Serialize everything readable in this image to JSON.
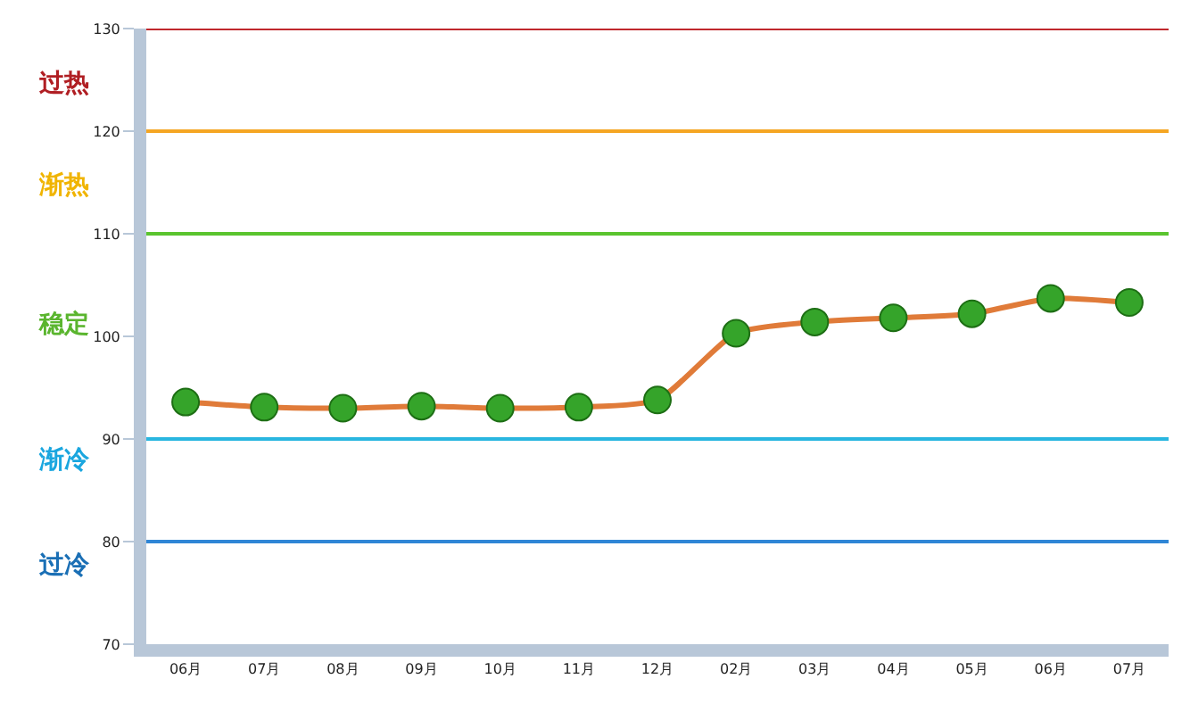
{
  "chart_data": {
    "type": "line",
    "categories": [
      "06月",
      "07月",
      "08月",
      "09月",
      "10月",
      "11月",
      "12月",
      "02月",
      "03月",
      "04月",
      "05月",
      "06月",
      "07月"
    ],
    "series": [
      {
        "color": "#e07b39",
        "values": [
          93.6,
          93.1,
          93.0,
          93.2,
          93.0,
          93.1,
          93.8,
          100.3,
          101.4,
          101.8,
          102.2,
          103.7,
          103.3
        ]
      }
    ],
    "ylim": [
      70,
      130
    ],
    "yticks": [
      70,
      80,
      90,
      100,
      110,
      120,
      130
    ],
    "marker": "circle",
    "line_style": "solid",
    "grid": false,
    "ref_lines": [
      {
        "axis": "y",
        "value": 130,
        "color": "#c0282d"
      },
      {
        "axis": "y",
        "value": 120,
        "color": "#f5a623"
      },
      {
        "axis": "y",
        "value": 110,
        "color": "#5ac42e"
      },
      {
        "axis": "y",
        "value": 90,
        "color": "#29b6e0"
      },
      {
        "axis": "y",
        "value": 80,
        "color": "#2f86d6"
      }
    ],
    "annotations": [
      "过热",
      "渐热",
      "稳定",
      "渐冷",
      "过冷"
    ]
  }
}
